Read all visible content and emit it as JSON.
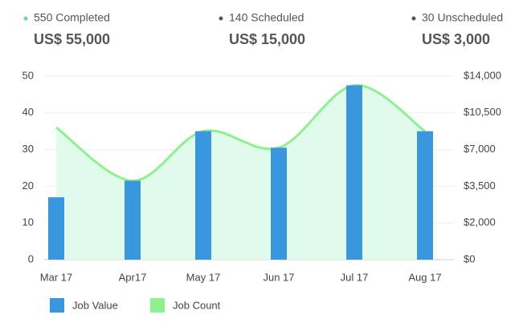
{
  "summary": [
    {
      "label": "550 Completed",
      "amount": "US$ 55,000",
      "color": "#6fd59a"
    },
    {
      "label": "140 Scheduled",
      "amount": "US$ 15,000",
      "color": "#555555"
    },
    {
      "label": "30 Unscheduled",
      "amount": "US$ 3,000",
      "color": "#555555"
    }
  ],
  "chart_data": {
    "type": "bar-line",
    "categories": [
      "Mar 17",
      "Apr17",
      "May 17",
      "Jun 17",
      "Jul 17",
      "Aug 17"
    ],
    "series": [
      {
        "name": "Job Value",
        "type": "bar",
        "color": "#3a96dd",
        "values": [
          17,
          21.5,
          35,
          30.5,
          47.5,
          35
        ]
      },
      {
        "name": "Job Count",
        "type": "line",
        "color": "#8ef08e",
        "fill": "#e0fbec",
        "values": [
          36,
          21.5,
          35,
          30.5,
          47.5,
          35
        ]
      }
    ],
    "ylim": [
      0,
      50
    ],
    "yticks": [
      0,
      10,
      20,
      30,
      40,
      50
    ],
    "y2lim": [
      0,
      14000
    ],
    "y2ticks": [
      {
        "value": 0,
        "label": "$0"
      },
      {
        "value": 2000,
        "label": "$2,000"
      },
      {
        "value": 3500,
        "label": "$3,500"
      },
      {
        "value": 7000,
        "label": "$7,000"
      },
      {
        "value": 10500,
        "label": "$10,500"
      },
      {
        "value": 14000,
        "label": "$14,000"
      }
    ],
    "grid": true,
    "legend": "bottom-left"
  }
}
